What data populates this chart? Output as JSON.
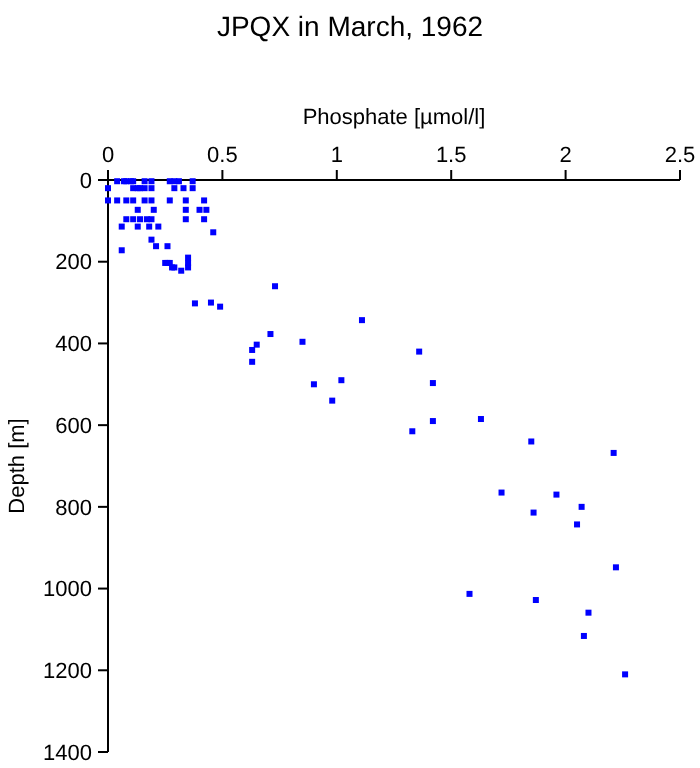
{
  "chart_data": {
    "type": "scatter",
    "title": "JPQX in March, 1962",
    "xlabel": "Phosphate [µmol/l]",
    "ylabel": "Depth [m]",
    "xlim": [
      0,
      2.5
    ],
    "ylim": [
      1400,
      0
    ],
    "xticks": [
      0,
      0.5,
      1,
      1.5,
      2,
      2.5
    ],
    "yticks": [
      0,
      200,
      400,
      600,
      800,
      1000,
      1200,
      1400
    ],
    "marker": "square",
    "grid": false,
    "series": [
      {
        "color": "#0000ff",
        "x": [
          0.04,
          0.07,
          0.08,
          0.1,
          0.11,
          0.16,
          0.19,
          0.27,
          0.29,
          0.31,
          0.37,
          0,
          0.11,
          0.13,
          0.14,
          0.16,
          0.19,
          0.29,
          0.33,
          0.37,
          0,
          0.04,
          0.08,
          0.11,
          0.16,
          0.19,
          0.27,
          0.34,
          0.42,
          0.13,
          0.2,
          0.34,
          0.4,
          0.43,
          0.08,
          0.11,
          0.14,
          0.17,
          0.19,
          0.34,
          0.42,
          0.06,
          0.13,
          0.18,
          0.22,
          0.46,
          0.19,
          0.21,
          0.26,
          0.06,
          0.35,
          0.25,
          0.26,
          0.27,
          0.35,
          0.28,
          0.29,
          0.35,
          0.32,
          0.38,
          0.45,
          0.49,
          0.73,
          1.11,
          0.85,
          0.71,
          0.65,
          0.63,
          0.63,
          1.36,
          0.9,
          1.02,
          1.42,
          0.98,
          1.42,
          1.33,
          1.63,
          1.85,
          2.21,
          1.72,
          1.96,
          1.86,
          2.07,
          2.05,
          2.22,
          1.58,
          1.87,
          2.1,
          2.08,
          2.26
        ],
        "values": [
          3,
          3,
          3,
          3,
          3,
          3,
          3,
          3,
          3,
          3,
          3,
          20,
          20,
          20,
          20,
          20,
          20,
          20,
          20,
          20,
          50,
          50,
          50,
          50,
          50,
          50,
          50,
          50,
          50,
          73,
          73,
          73,
          73,
          73,
          96,
          96,
          96,
          96,
          96,
          96,
          96,
          114,
          114,
          114,
          114,
          128,
          146,
          162,
          162,
          172,
          190,
          203,
          203,
          203,
          203,
          214,
          214,
          214,
          222,
          302,
          300,
          310,
          260,
          343,
          396,
          377,
          403,
          416,
          445,
          420,
          500,
          490,
          497,
          540,
          590,
          615,
          585,
          640,
          668,
          765,
          770,
          814,
          800,
          843,
          948,
          1013,
          1028,
          1059,
          1116,
          1210
        ]
      }
    ]
  }
}
